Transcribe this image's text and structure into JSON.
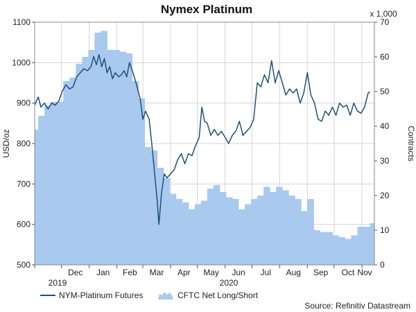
{
  "chart_data": {
    "type": "line",
    "title": "Nymex Platinum",
    "source": "Source: Refinitiv Datastream",
    "y_left": {
      "label": "USD/oz",
      "range": [
        500,
        1100
      ],
      "ticks": [
        "500",
        "600",
        "700",
        "800",
        "900",
        "1000",
        "1100"
      ]
    },
    "y_right": {
      "label": "Contracts",
      "scale_note": "x 1,000",
      "range": [
        0,
        70
      ],
      "ticks": [
        "0",
        "10",
        "20",
        "30",
        "40",
        "50",
        "60",
        "70"
      ]
    },
    "x_months": [
      "Dec",
      "Jan",
      "Feb",
      "Mar",
      "Apr",
      "May",
      "Jun",
      "Jul",
      "Aug",
      "Sep",
      "Oct",
      "Nov"
    ],
    "x_years": [
      "2019",
      "2020"
    ],
    "grid": true,
    "legend_position": "bottom-left",
    "series": [
      {
        "name": "NYM-Platinum Futures",
        "type": "line",
        "color": "#1f4e79",
        "axis": "left",
        "points": [
          [
            "2019-11-01",
            895
          ],
          [
            "2019-11-05",
            915
          ],
          [
            "2019-11-08",
            890
          ],
          [
            "2019-11-12",
            900
          ],
          [
            "2019-11-16",
            885
          ],
          [
            "2019-11-20",
            900
          ],
          [
            "2019-11-24",
            895
          ],
          [
            "2019-11-28",
            905
          ],
          [
            "2019-12-02",
            930
          ],
          [
            "2019-12-06",
            945
          ],
          [
            "2019-12-10",
            935
          ],
          [
            "2019-12-14",
            940
          ],
          [
            "2019-12-18",
            965
          ],
          [
            "2019-12-22",
            975
          ],
          [
            "2019-12-26",
            985
          ],
          [
            "2019-12-30",
            980
          ],
          [
            "2020-01-03",
            990
          ],
          [
            "2020-01-06",
            1015
          ],
          [
            "2020-01-09",
            995
          ],
          [
            "2020-01-12",
            1020
          ],
          [
            "2020-01-15",
            990
          ],
          [
            "2020-01-18",
            1010
          ],
          [
            "2020-01-21",
            975
          ],
          [
            "2020-01-24",
            990
          ],
          [
            "2020-01-27",
            960
          ],
          [
            "2020-01-30",
            975
          ],
          [
            "2020-02-03",
            965
          ],
          [
            "2020-02-06",
            970
          ],
          [
            "2020-02-09",
            980
          ],
          [
            "2020-02-12",
            965
          ],
          [
            "2020-02-15",
            1000
          ],
          [
            "2020-02-19",
            975
          ],
          [
            "2020-02-23",
            945
          ],
          [
            "2020-02-27",
            910
          ],
          [
            "2020-03-01",
            860
          ],
          [
            "2020-03-04",
            880
          ],
          [
            "2020-03-08",
            860
          ],
          [
            "2020-03-11",
            800
          ],
          [
            "2020-03-14",
            730
          ],
          [
            "2020-03-17",
            660
          ],
          [
            "2020-03-19",
            600
          ],
          [
            "2020-03-22",
            680
          ],
          [
            "2020-03-25",
            725
          ],
          [
            "2020-03-28",
            715
          ],
          [
            "2020-04-01",
            725
          ],
          [
            "2020-04-05",
            735
          ],
          [
            "2020-04-09",
            760
          ],
          [
            "2020-04-13",
            775
          ],
          [
            "2020-04-17",
            750
          ],
          [
            "2020-04-21",
            775
          ],
          [
            "2020-04-25",
            770
          ],
          [
            "2020-04-29",
            795
          ],
          [
            "2020-05-03",
            815
          ],
          [
            "2020-05-06",
            890
          ],
          [
            "2020-05-09",
            855
          ],
          [
            "2020-05-12",
            850
          ],
          [
            "2020-05-16",
            820
          ],
          [
            "2020-05-20",
            835
          ],
          [
            "2020-05-24",
            820
          ],
          [
            "2020-05-28",
            830
          ],
          [
            "2020-06-01",
            815
          ],
          [
            "2020-06-05",
            800
          ],
          [
            "2020-06-09",
            820
          ],
          [
            "2020-06-13",
            830
          ],
          [
            "2020-06-17",
            855
          ],
          [
            "2020-06-21",
            820
          ],
          [
            "2020-06-25",
            830
          ],
          [
            "2020-06-29",
            840
          ],
          [
            "2020-07-03",
            860
          ],
          [
            "2020-07-07",
            950
          ],
          [
            "2020-07-11",
            940
          ],
          [
            "2020-07-15",
            970
          ],
          [
            "2020-07-19",
            950
          ],
          [
            "2020-07-23",
            1005
          ],
          [
            "2020-07-27",
            950
          ],
          [
            "2020-07-31",
            980
          ],
          [
            "2020-08-04",
            950
          ],
          [
            "2020-08-08",
            920
          ],
          [
            "2020-08-12",
            935
          ],
          [
            "2020-08-16",
            925
          ],
          [
            "2020-08-20",
            935
          ],
          [
            "2020-08-24",
            900
          ],
          [
            "2020-08-28",
            925
          ],
          [
            "2020-09-01",
            975
          ],
          [
            "2020-09-05",
            920
          ],
          [
            "2020-09-09",
            900
          ],
          [
            "2020-09-13",
            860
          ],
          [
            "2020-09-17",
            855
          ],
          [
            "2020-09-21",
            880
          ],
          [
            "2020-09-25",
            870
          ],
          [
            "2020-09-29",
            890
          ],
          [
            "2020-10-03",
            870
          ],
          [
            "2020-10-07",
            900
          ],
          [
            "2020-10-11",
            890
          ],
          [
            "2020-10-15",
            895
          ],
          [
            "2020-10-19",
            870
          ],
          [
            "2020-10-23",
            900
          ],
          [
            "2020-10-27",
            880
          ],
          [
            "2020-10-31",
            875
          ],
          [
            "2020-11-04",
            890
          ],
          [
            "2020-11-08",
            925
          ],
          [
            "2020-11-10",
            928
          ]
        ]
      },
      {
        "name": "CFTC Net Long/Short",
        "type": "area",
        "color": "#a9c9ee",
        "axis": "right",
        "points": [
          [
            "2019-11-01",
            39
          ],
          [
            "2019-11-05",
            43
          ],
          [
            "2019-11-12",
            46
          ],
          [
            "2019-11-19",
            47
          ],
          [
            "2019-11-26",
            47
          ],
          [
            "2019-12-03",
            53
          ],
          [
            "2019-12-10",
            54
          ],
          [
            "2019-12-17",
            58
          ],
          [
            "2019-12-24",
            60
          ],
          [
            "2019-12-31",
            62
          ],
          [
            "2020-01-07",
            67
          ],
          [
            "2020-01-14",
            67.5
          ],
          [
            "2020-01-21",
            62
          ],
          [
            "2020-01-28",
            62
          ],
          [
            "2020-02-04",
            61.5
          ],
          [
            "2020-02-11",
            61
          ],
          [
            "2020-02-18",
            53
          ],
          [
            "2020-02-25",
            48
          ],
          [
            "2020-03-03",
            34
          ],
          [
            "2020-03-10",
            33
          ],
          [
            "2020-03-17",
            28
          ],
          [
            "2020-03-24",
            25
          ],
          [
            "2020-03-31",
            20.5
          ],
          [
            "2020-04-07",
            19
          ],
          [
            "2020-04-14",
            18
          ],
          [
            "2020-04-21",
            16
          ],
          [
            "2020-04-28",
            17.5
          ],
          [
            "2020-05-05",
            18.5
          ],
          [
            "2020-05-12",
            22
          ],
          [
            "2020-05-19",
            23
          ],
          [
            "2020-05-26",
            21
          ],
          [
            "2020-06-02",
            19.5
          ],
          [
            "2020-06-09",
            19
          ],
          [
            "2020-06-16",
            16
          ],
          [
            "2020-06-23",
            17.5
          ],
          [
            "2020-06-30",
            19
          ],
          [
            "2020-07-07",
            20
          ],
          [
            "2020-07-14",
            22.5
          ],
          [
            "2020-07-21",
            21
          ],
          [
            "2020-07-28",
            22.5
          ],
          [
            "2020-08-04",
            21.5
          ],
          [
            "2020-08-11",
            20
          ],
          [
            "2020-08-18",
            19
          ],
          [
            "2020-08-25",
            15.5
          ],
          [
            "2020-09-01",
            19
          ],
          [
            "2020-09-08",
            10
          ],
          [
            "2020-09-15",
            9.5
          ],
          [
            "2020-09-22",
            9.5
          ],
          [
            "2020-09-29",
            8.5
          ],
          [
            "2020-10-06",
            8
          ],
          [
            "2020-10-13",
            7.5
          ],
          [
            "2020-10-20",
            8.5
          ],
          [
            "2020-10-27",
            11
          ],
          [
            "2020-11-03",
            11
          ],
          [
            "2020-11-10",
            12
          ]
        ]
      }
    ]
  }
}
